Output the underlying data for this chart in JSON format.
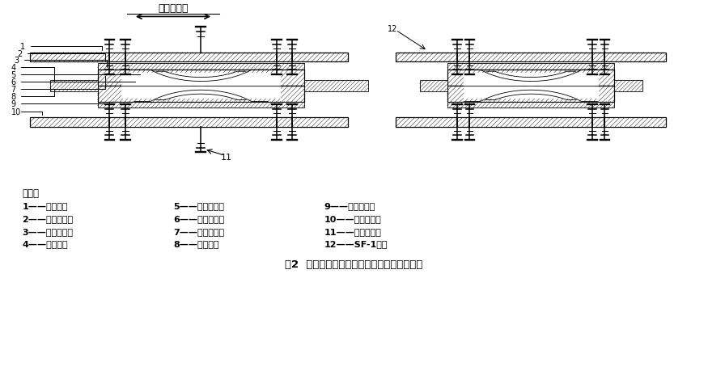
{
  "title": "图2  单向活动摩擦摆式减隔震支座结构示意图",
  "direction_label": "主位移方向",
  "explanation_title": "说明：",
  "legend_col1": [
    "1——上座板；",
    "2——平面滑板；",
    "3——球冠衬板；",
    "4——防尘圈；"
  ],
  "legend_col2": [
    "5——球面滑板；",
    "6——减震球摆；",
    "7——隔震挡块；",
    "8——剪力销；"
  ],
  "legend_col3": [
    "9——减震滑板；",
    "10——减震底座；",
    "11——螺栓套筒；",
    "12——SF-1板。"
  ],
  "bg_color": "#ffffff",
  "line_color": "#000000",
  "label_fontsize": 8.5,
  "title_fontsize": 9.5,
  "direction_fontsize": 9
}
